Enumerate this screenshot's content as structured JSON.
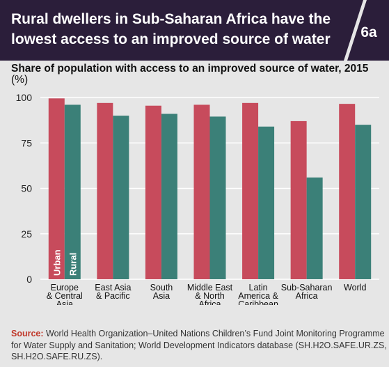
{
  "header": {
    "title_line1": "Rural dwellers in Sub-Saharan Africa have the",
    "title_line2": "lowest access to an improved source of water",
    "badge": "6a",
    "bar_color": "#2b1e3a"
  },
  "subtitle": {
    "bold_part": "Share of population with access to an improved source of water, 2015",
    "unit": "(%)"
  },
  "source": {
    "label": "Source:",
    "text": "World Health Organization–United Nations Children’s Fund Joint Monitoring Programme for Water Supply and Sanitation; World Development Indicators database (SH.H2O.SAFE.UR.ZS, SH.H2O.SAFE.RU.ZS)."
  },
  "chart_data": {
    "type": "bar",
    "categories": [
      [
        "Europe",
        "& Central",
        "Asia"
      ],
      [
        "East Asia",
        "& Pacific"
      ],
      [
        "South",
        "Asia"
      ],
      [
        "Middle East",
        "& North",
        "Africa"
      ],
      [
        "Latin",
        "America &",
        "Caribbean"
      ],
      [
        "Sub-Saharan",
        "Africa"
      ],
      [
        "World"
      ]
    ],
    "series": [
      {
        "name": "Urban",
        "color": "#c74b5c",
        "values": [
          99.5,
          97.0,
          95.5,
          96.0,
          97.0,
          87.0,
          96.5
        ]
      },
      {
        "name": "Rural",
        "color": "#3b8078",
        "values": [
          96.0,
          90.0,
          91.0,
          89.5,
          84.0,
          56.0,
          85.0
        ]
      }
    ],
    "yticks": [
      0,
      25,
      50,
      75,
      100
    ],
    "ylim": [
      0,
      100
    ],
    "grid": true,
    "grid_color": "#ffffff",
    "legend": "labels inside first bars"
  }
}
